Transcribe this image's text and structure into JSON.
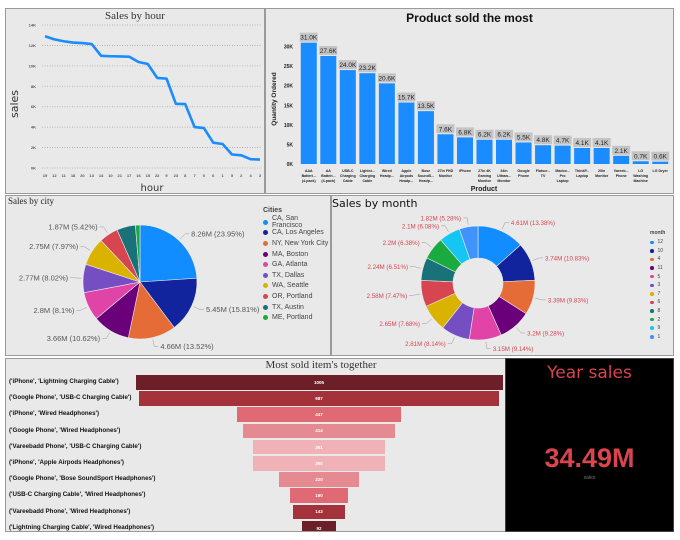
{
  "colors": {
    "line": "#1a8cff",
    "bar": "#1a8cff",
    "panel_bg": "#e9e9e9",
    "kpi": "#d9444f"
  },
  "sales_by_hour": {
    "chart_data": {
      "type": "line",
      "title": "Sales by hour",
      "xlabel": "hour",
      "ylabel": "sales",
      "categories": [
        "19",
        "12",
        "11",
        "18",
        "20",
        "13",
        "14",
        "10",
        "21",
        "17",
        "16",
        "15",
        "22",
        "9",
        "23",
        "8",
        "7",
        "0",
        "6",
        "1",
        "5",
        "2",
        "4",
        "3"
      ],
      "values": [
        12900,
        12590,
        12410,
        12280,
        12230,
        12130,
        10980,
        10940,
        10920,
        10900,
        10380,
        10180,
        8820,
        8750,
        6280,
        6260,
        4010,
        3910,
        2480,
        2350,
        1320,
        1240,
        860,
        830
      ],
      "ylim": [
        0,
        14000
      ],
      "yticks": [
        "0K",
        "2K",
        "4K",
        "6K",
        "8K",
        "10K",
        "12K",
        "14K"
      ],
      "grid": true
    }
  },
  "product_sold": {
    "chart_data": {
      "type": "bar",
      "title": "Product sold the most",
      "xlabel": "Product",
      "ylabel": "Quantity Ordered",
      "categories": [
        "AAA Batteri... (4-pack)",
        "AA Batteri... (4-pack)",
        "USB-C Charging Cable",
        "Lightni... Charging Cable",
        "Wired Headp...",
        "Apple Airpods Headp...",
        "Bose SoundS... Headp...",
        "27in FHD Monitor",
        "iPhone",
        "27in 4K Gaming Monitor",
        "34in Ultraw... Monitor",
        "Google Phone",
        "Flatscr... TV",
        "Macbo... Pro Laptop",
        "ThinkP... Laptop",
        "20in Monitor",
        "Vareeb... Phone",
        "LG Washing Machine",
        "LG Dryer"
      ],
      "values": [
        31000,
        27600,
        24000,
        23200,
        20600,
        15700,
        13500,
        7600,
        6800,
        6200,
        6200,
        5500,
        4800,
        4700,
        4100,
        4100,
        2100,
        700,
        600
      ],
      "data_labels": [
        "31.0K",
        "27.6K",
        "24.0K",
        "23.2K",
        "20.6K",
        "15.7K",
        "13.5K",
        "7.6K",
        "6.8K",
        "6.2K",
        "6.2K",
        "5.5K",
        "4.8K",
        "4.7K",
        "4.1K",
        "4.1K",
        "2.1K",
        "0.7K",
        "0.6K"
      ],
      "ylim": [
        0,
        35000
      ],
      "yticks": [
        "0K",
        "5K",
        "10K",
        "15K",
        "20K",
        "25K",
        "30K"
      ],
      "grid": false
    }
  },
  "sales_by_city": {
    "chart_data": {
      "type": "pie",
      "title": "Sales by city",
      "legend_title": "Cities",
      "legend": "right",
      "slices": [
        {
          "name": "CA, San Francisco",
          "percent": 23.95,
          "label": "8.26M (23.95%)",
          "color": "#118dff"
        },
        {
          "name": "CA, Los Angeles",
          "percent": 15.81,
          "label": "5.45M (15.81%)",
          "color": "#12239e"
        },
        {
          "name": "NY, New York City",
          "percent": 13.52,
          "label": "4.66M (13.52%)",
          "color": "#e66c37"
        },
        {
          "name": "MA, Boston",
          "percent": 10.62,
          "label": "3.66M (10.62%)",
          "color": "#6b007b"
        },
        {
          "name": "GA, Atlanta",
          "percent": 8.1,
          "label": "2.8M (8.1%)",
          "color": "#e044a7"
        },
        {
          "name": "TX, Dallas",
          "percent": 8.02,
          "label": "2.77M (8.02%)",
          "color": "#744ec2"
        },
        {
          "name": "WA, Seattle",
          "percent": 7.97,
          "label": "2.75M (7.97%)",
          "color": "#d9b300"
        },
        {
          "name": "OR, Portland",
          "percent": 5.42,
          "label": "1.87M (5.42%)",
          "color": "#d64550"
        },
        {
          "name": "TX, Austin",
          "percent": 5.3,
          "label": "",
          "color": "#197278"
        },
        {
          "name": "ME, Portland",
          "percent": 1.29,
          "label": "",
          "color": "#1aab40"
        }
      ]
    }
  },
  "sales_by_month": {
    "chart_data": {
      "type": "pie",
      "variant": "donut",
      "title": "Sales by month",
      "legend_title": "month",
      "legend": "right",
      "slices": [
        {
          "name": "12",
          "percent": 13.38,
          "label": "4.61M (13.38%)",
          "color": "#118dff"
        },
        {
          "name": "10",
          "percent": 10.83,
          "label": "3.74M (10.83%)",
          "color": "#12239e"
        },
        {
          "name": "4",
          "percent": 9.83,
          "label": "3.39M (9.83%)",
          "color": "#e66c37"
        },
        {
          "name": "11",
          "percent": 9.28,
          "label": "3.2M (9.28%)",
          "color": "#6b007b"
        },
        {
          "name": "5",
          "percent": 9.14,
          "label": "3.15M (9.14%)",
          "color": "#e044a7"
        },
        {
          "name": "3",
          "percent": 8.14,
          "label": "2.81M (8.14%)",
          "color": "#744ec2"
        },
        {
          "name": "7",
          "percent": 7.68,
          "label": "2.65M (7.68%)",
          "color": "#d9b300"
        },
        {
          "name": "6",
          "percent": 7.47,
          "label": "2.58M (7.47%)",
          "color": "#d64550"
        },
        {
          "name": "8",
          "percent": 6.51,
          "label": "2.24M (6.51%)",
          "color": "#197278"
        },
        {
          "name": "2",
          "percent": 6.38,
          "label": "2.2M (6.38%)",
          "color": "#1aab40"
        },
        {
          "name": "9",
          "percent": 6.08,
          "label": "2.1M (6.08%)",
          "color": "#15c6f4"
        },
        {
          "name": "1",
          "percent": 5.28,
          "label": "1.82M (5.28%)",
          "color": "#4092ff"
        }
      ]
    }
  },
  "most_sold_together": {
    "chart_data": {
      "type": "bar",
      "variant": "funnel",
      "title": "Most sold item's together",
      "categories": [
        "('iPhone', 'Lightning Charging Cable')",
        "('Google Phone', 'USB-C Charging Cable')",
        "('iPhone', 'Wired Headphones')",
        "('Google Phone', 'Wired Headphones')",
        "('Vareebadd Phone', 'USB-C Charging Cable')",
        "('iPhone', 'Apple Airpods Headphones')",
        "('Google Phone', 'Bose SoundSport Headphones')",
        "('USB-C Charging Cable', 'Wired Headphones')",
        "('Vareebadd Phone', 'Wired Headphones')",
        "('Lightning Charging Cable', 'Wired Headphones')"
      ],
      "values": [
        1005,
        987,
        447,
        414,
        361,
        360,
        220,
        160,
        143,
        92
      ],
      "colors": [
        "#6d1f27",
        "#a3323b",
        "#e06a73",
        "#e68a92",
        "#f0b2b7",
        "#f0b2b7",
        "#e68a92",
        "#e06a73",
        "#a3323b",
        "#6d1f27"
      ]
    }
  },
  "year_sales": {
    "title": "Year sales",
    "value": "34.49M",
    "caption": "sales"
  }
}
